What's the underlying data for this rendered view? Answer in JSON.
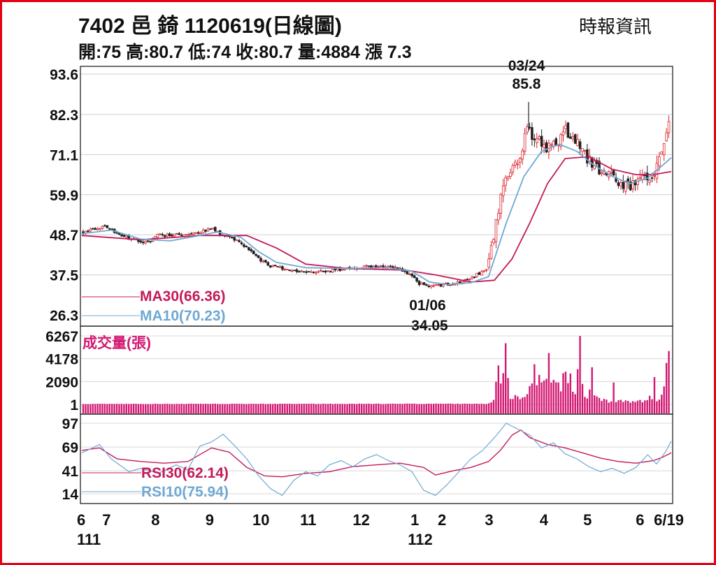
{
  "header": {
    "title": "7402 邑 錡 1120619(日線圖)",
    "source": "時報資訊",
    "quote": "開:75 高:80.7 低:74 收:80.7 量:4884 漲 7.3"
  },
  "colors": {
    "frame": "#e60012",
    "ma30": "#c41a5a",
    "ma10": "#6fa8d2",
    "volume": "#d31872",
    "candle_up": "#d9232d",
    "candle_down": "#222222"
  },
  "chart_data": [
    {
      "type": "candlestick",
      "panel": "price",
      "y_ticks": [
        26.3,
        37.5,
        48.7,
        59.9,
        71.1,
        82.3,
        93.6
      ],
      "ylim": [
        26.3,
        93.6
      ],
      "x_tick_labels": [
        {
          "label": "6",
          "sub": "111",
          "t": 0
        },
        {
          "label": "7",
          "t": 0.042
        },
        {
          "label": "8",
          "t": 0.125
        },
        {
          "label": "9",
          "t": 0.217
        },
        {
          "label": "10",
          "t": 0.304
        },
        {
          "label": "11",
          "t": 0.384
        },
        {
          "label": "12",
          "t": 0.474
        },
        {
          "label": "1",
          "sub": "112",
          "t": 0.565
        },
        {
          "label": "2",
          "t": 0.611
        },
        {
          "label": "3",
          "t": 0.691
        },
        {
          "label": "4",
          "t": 0.784
        },
        {
          "label": "5",
          "t": 0.858
        },
        {
          "label": "6",
          "t": 0.947
        },
        {
          "label": "6/19",
          "t": 1
        }
      ],
      "close_path": [
        [
          0,
          49.5
        ],
        [
          0.035,
          51
        ],
        [
          0.05,
          50
        ],
        [
          0.08,
          47.5
        ],
        [
          0.11,
          46.5
        ],
        [
          0.125,
          48.5
        ],
        [
          0.15,
          48.5
        ],
        [
          0.175,
          49
        ],
        [
          0.2,
          49.5
        ],
        [
          0.218,
          50.5
        ],
        [
          0.24,
          48.5
        ],
        [
          0.27,
          46.5
        ],
        [
          0.3,
          42
        ],
        [
          0.32,
          40
        ],
        [
          0.35,
          39
        ],
        [
          0.38,
          38.5
        ],
        [
          0.41,
          38.5
        ],
        [
          0.44,
          39
        ],
        [
          0.47,
          39.5
        ],
        [
          0.5,
          40
        ],
        [
          0.53,
          39.5
        ],
        [
          0.555,
          38
        ],
        [
          0.575,
          35
        ],
        [
          0.59,
          34.2
        ],
        [
          0.61,
          34.6
        ],
        [
          0.64,
          35.2
        ],
        [
          0.665,
          37
        ],
        [
          0.69,
          39
        ],
        [
          0.705,
          52
        ],
        [
          0.715,
          61
        ],
        [
          0.73,
          66.5
        ],
        [
          0.745,
          70
        ],
        [
          0.758,
          78
        ],
        [
          0.772,
          76
        ],
        [
          0.79,
          73
        ],
        [
          0.81,
          74
        ],
        [
          0.825,
          78
        ],
        [
          0.84,
          75
        ],
        [
          0.86,
          70
        ],
        [
          0.88,
          67
        ],
        [
          0.9,
          65
        ],
        [
          0.92,
          63
        ],
        [
          0.935,
          62
        ],
        [
          0.95,
          63.5
        ],
        [
          0.965,
          64
        ],
        [
          0.975,
          66
        ],
        [
          0.985,
          70
        ],
        [
          0.993,
          74
        ],
        [
          1,
          80.7
        ]
      ],
      "series": [
        {
          "name": "MA30(66.36)",
          "color": "#c41a5a",
          "points": [
            [
              0,
              48.5
            ],
            [
              0.1,
              47.3
            ],
            [
              0.2,
              48.5
            ],
            [
              0.28,
              48.5
            ],
            [
              0.33,
              45
            ],
            [
              0.38,
              40.5
            ],
            [
              0.45,
              39.3
            ],
            [
              0.55,
              38.8
            ],
            [
              0.6,
              37.5
            ],
            [
              0.66,
              35.5
            ],
            [
              0.7,
              36
            ],
            [
              0.73,
              42
            ],
            [
              0.76,
              52
            ],
            [
              0.79,
              63
            ],
            [
              0.82,
              70
            ],
            [
              0.86,
              70.5
            ],
            [
              0.9,
              67
            ],
            [
              0.94,
              65.5
            ],
            [
              0.97,
              65.5
            ],
            [
              1,
              66.36
            ]
          ]
        },
        {
          "name": "MA10(70.23)",
          "color": "#6fa8d2",
          "points": [
            [
              0,
              49
            ],
            [
              0.05,
              50
            ],
            [
              0.1,
              47.5
            ],
            [
              0.15,
              47
            ],
            [
              0.2,
              48.5
            ],
            [
              0.23,
              49.5
            ],
            [
              0.27,
              48
            ],
            [
              0.3,
              44
            ],
            [
              0.33,
              41
            ],
            [
              0.38,
              39.5
            ],
            [
              0.45,
              39.3
            ],
            [
              0.52,
              39.5
            ],
            [
              0.56,
              38.5
            ],
            [
              0.59,
              35.5
            ],
            [
              0.62,
              34.8
            ],
            [
              0.66,
              35.3
            ],
            [
              0.69,
              37
            ],
            [
              0.72,
              52
            ],
            [
              0.75,
              65
            ],
            [
              0.78,
              72
            ],
            [
              0.81,
              74
            ],
            [
              0.84,
              72
            ],
            [
              0.87,
              68
            ],
            [
              0.9,
              65
            ],
            [
              0.93,
              63
            ],
            [
              0.96,
              64.5
            ],
            [
              1,
              70.23
            ]
          ]
        }
      ],
      "annotations": [
        {
          "label": "03/24",
          "value_label": "85.8",
          "t": 0.758,
          "value": 85.8
        },
        {
          "label": "01/06",
          "value_label": "34.05",
          "t": 0.583,
          "value": 34.05
        }
      ]
    },
    {
      "type": "bar",
      "panel": "volume",
      "title": "成交量(張)",
      "y_ticks": [
        1,
        2090,
        4178,
        6267
      ],
      "ylim": [
        1,
        6267
      ],
      "profile": [
        [
          0,
          40
        ],
        [
          0.69,
          55
        ],
        [
          0.7,
          300
        ],
        [
          0.705,
          2200
        ],
        [
          0.71,
          4500
        ],
        [
          0.715,
          2600
        ],
        [
          0.72,
          5600
        ],
        [
          0.725,
          1800
        ],
        [
          0.73,
          800
        ],
        [
          0.74,
          600
        ],
        [
          0.75,
          500
        ],
        [
          0.76,
          900
        ],
        [
          0.77,
          2600
        ],
        [
          0.78,
          1500
        ],
        [
          0.79,
          4200
        ],
        [
          0.8,
          1900
        ],
        [
          0.81,
          1600
        ],
        [
          0.82,
          2200
        ],
        [
          0.83,
          2400
        ],
        [
          0.84,
          900
        ],
        [
          0.845,
          5200
        ],
        [
          0.85,
          1500
        ],
        [
          0.86,
          900
        ],
        [
          0.87,
          1700
        ],
        [
          0.88,
          600
        ],
        [
          0.89,
          350
        ],
        [
          0.9,
          250
        ],
        [
          0.92,
          300
        ],
        [
          0.94,
          250
        ],
        [
          0.96,
          400
        ],
        [
          0.97,
          600
        ],
        [
          0.98,
          500
        ],
        [
          0.99,
          700
        ],
        [
          1,
          4884
        ]
      ],
      "spikes": [
        [
          0.72,
          5600
        ],
        [
          0.778,
          2700
        ],
        [
          0.795,
          4700
        ],
        [
          0.825,
          3000
        ],
        [
          0.85,
          6267
        ],
        [
          0.87,
          3400
        ],
        [
          0.905,
          2000
        ],
        [
          0.974,
          2500
        ]
      ]
    },
    {
      "type": "line",
      "panel": "rsi",
      "y_ticks": [
        14,
        41,
        69,
        97
      ],
      "ylim": [
        5,
        100
      ],
      "series": [
        {
          "name": "RSI30(62.14)",
          "color": "#c41a5a",
          "points": [
            [
              0,
              65
            ],
            [
              0.03,
              68
            ],
            [
              0.06,
              55
            ],
            [
              0.1,
              52
            ],
            [
              0.14,
              50
            ],
            [
              0.18,
              52
            ],
            [
              0.22,
              68
            ],
            [
              0.25,
              63
            ],
            [
              0.28,
              45
            ],
            [
              0.31,
              35
            ],
            [
              0.34,
              34
            ],
            [
              0.38,
              38
            ],
            [
              0.42,
              40
            ],
            [
              0.46,
              46
            ],
            [
              0.5,
              48
            ],
            [
              0.54,
              50
            ],
            [
              0.58,
              45
            ],
            [
              0.6,
              36
            ],
            [
              0.63,
              41
            ],
            [
              0.66,
              45
            ],
            [
              0.69,
              52
            ],
            [
              0.71,
              65
            ],
            [
              0.73,
              83
            ],
            [
              0.745,
              89
            ],
            [
              0.76,
              80
            ],
            [
              0.79,
              72
            ],
            [
              0.82,
              68
            ],
            [
              0.85,
              62
            ],
            [
              0.88,
              56
            ],
            [
              0.91,
              52
            ],
            [
              0.94,
              50
            ],
            [
              0.97,
              53
            ],
            [
              0.985,
              57
            ],
            [
              1,
              62.14
            ]
          ]
        },
        {
          "name": "RSI10(75.94)",
          "color": "#6fa8d2",
          "points": [
            [
              0,
              62
            ],
            [
              0.03,
              72
            ],
            [
              0.05,
              55
            ],
            [
              0.08,
              40
            ],
            [
              0.1,
              44
            ],
            [
              0.13,
              38
            ],
            [
              0.16,
              48
            ],
            [
              0.18,
              42
            ],
            [
              0.2,
              70
            ],
            [
              0.22,
              75
            ],
            [
              0.24,
              84
            ],
            [
              0.26,
              70
            ],
            [
              0.28,
              55
            ],
            [
              0.3,
              35
            ],
            [
              0.32,
              20
            ],
            [
              0.34,
              12
            ],
            [
              0.36,
              30
            ],
            [
              0.38,
              40
            ],
            [
              0.4,
              35
            ],
            [
              0.42,
              48
            ],
            [
              0.44,
              53
            ],
            [
              0.46,
              46
            ],
            [
              0.48,
              55
            ],
            [
              0.5,
              60
            ],
            [
              0.52,
              53
            ],
            [
              0.54,
              48
            ],
            [
              0.56,
              40
            ],
            [
              0.58,
              18
            ],
            [
              0.6,
              12
            ],
            [
              0.62,
              25
            ],
            [
              0.64,
              40
            ],
            [
              0.66,
              55
            ],
            [
              0.68,
              65
            ],
            [
              0.7,
              80
            ],
            [
              0.72,
              97
            ],
            [
              0.74,
              90
            ],
            [
              0.76,
              83
            ],
            [
              0.78,
              68
            ],
            [
              0.8,
              74
            ],
            [
              0.82,
              61
            ],
            [
              0.84,
              55
            ],
            [
              0.86,
              46
            ],
            [
              0.88,
              40
            ],
            [
              0.9,
              44
            ],
            [
              0.92,
              38
            ],
            [
              0.94,
              45
            ],
            [
              0.96,
              60
            ],
            [
              0.975,
              49
            ],
            [
              0.99,
              63
            ],
            [
              1,
              75.94
            ]
          ]
        }
      ]
    }
  ]
}
